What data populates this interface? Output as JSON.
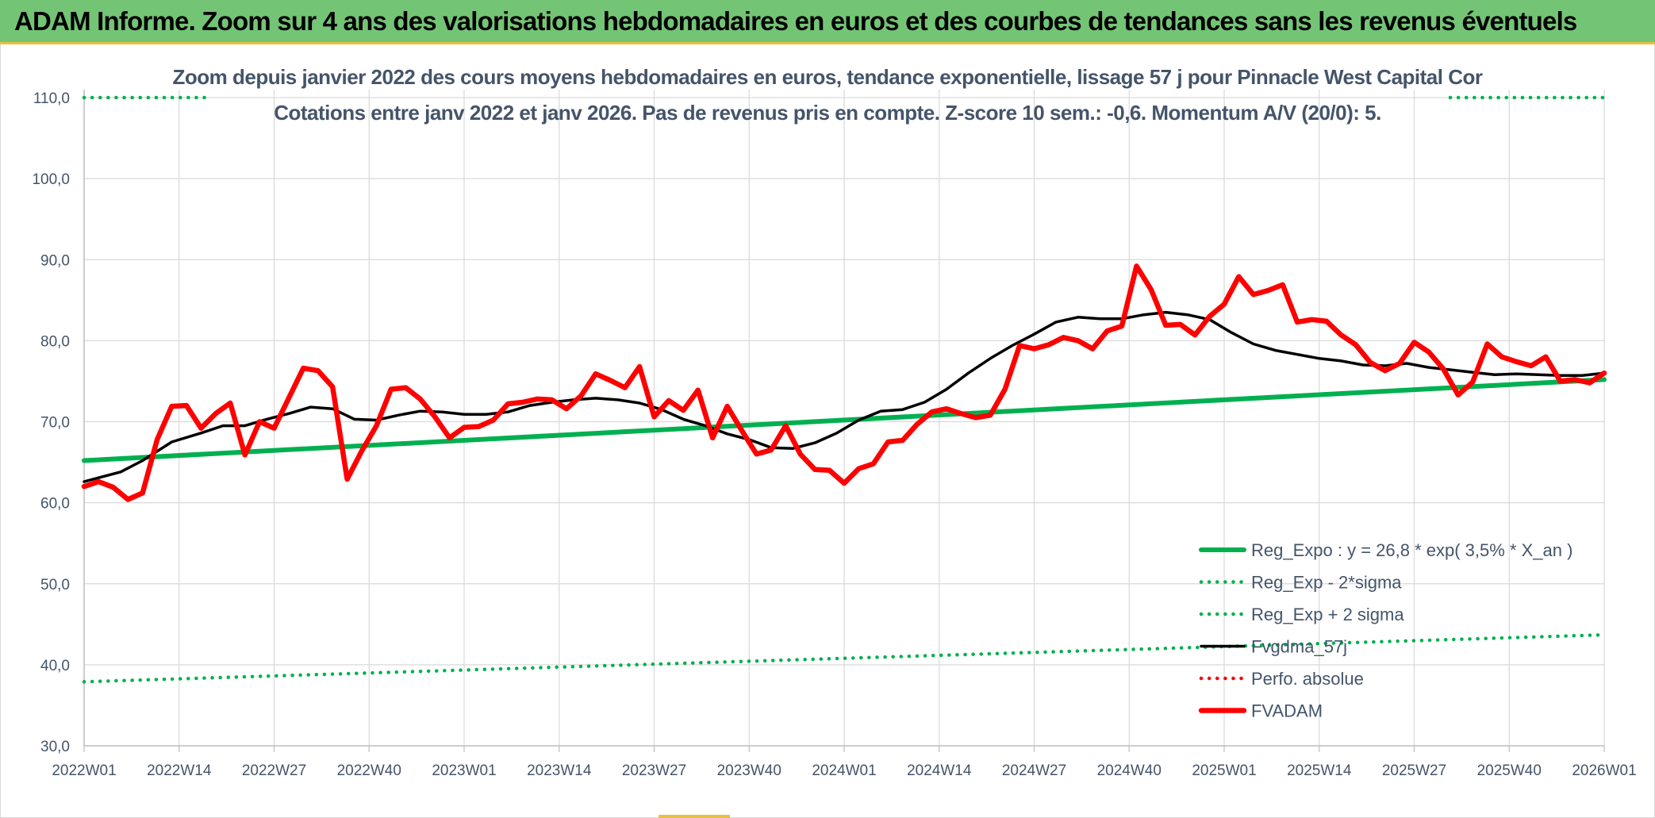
{
  "banner": {
    "title": "ADAM Informe. Zoom sur 4 ans des valorisations hebdomadaires en euros et des courbes de tendances sans les revenus éventuels"
  },
  "colors": {
    "banner": "#74c476",
    "accent": "#e8c042",
    "reg_expo": "#00b050",
    "fvgdma": "#000000",
    "fvadam": "#ff0000",
    "perfo": "#ff0000",
    "text": "#44546a",
    "grid": "#d9d9d9"
  },
  "chart_data": {
    "type": "line",
    "title_line1": "Zoom depuis janvier 2022 des cours moyens hebdomadaires en euros, tendance exponentielle, lissage 57 j pour Pinnacle West Capital Cor",
    "title_line2": "Cotations entre janv 2022 et janv 2026. Pas de revenus pris en compte. Z-score 10 sem.: -0,6. Momentum A/V (20/0): 5.",
    "x_tick_labels": [
      "2022W01",
      "2022W14",
      "2022W27",
      "2022W40",
      "2023W01",
      "2023W14",
      "2023W27",
      "2023W40",
      "2024W01",
      "2024W14",
      "2024W27",
      "2024W40",
      "2025W01",
      "2025W14",
      "2025W27",
      "2025W40",
      "2026W01"
    ],
    "x_range_weeks": [
      0,
      208
    ],
    "ylim": [
      30,
      110
    ],
    "y_ticks": [
      30,
      40,
      50,
      60,
      70,
      80,
      90,
      100,
      110
    ],
    "y_tick_labels": [
      "30,0",
      "40,0",
      "50,0",
      "60,0",
      "70,0",
      "80,0",
      "90,0",
      "100,0",
      "110,0"
    ],
    "grid": true,
    "legend_position": "bottom-right",
    "series": [
      {
        "name": "Reg_Expo : y = 26,8 * exp( 3,5% *  X_an )",
        "style": "solid-thick",
        "color": "#00b050",
        "x": [
          0,
          208
        ],
        "values": [
          65.2,
          75.2
        ]
      },
      {
        "name": "Reg_Exp - 2*sigma",
        "style": "dotted",
        "color": "#00b050",
        "x": [
          0,
          208
        ],
        "values": [
          37.9,
          43.7
        ]
      },
      {
        "name": "Reg_Exp + 2 sigma",
        "style": "dotted",
        "color": "#00b050",
        "x": [
          0,
          208
        ],
        "values": [
          110.0,
          110.0
        ]
      },
      {
        "name": "Fvgdma_57j",
        "style": "solid",
        "color": "#000000",
        "x": [
          0,
          5,
          8,
          12,
          16,
          19,
          22,
          25,
          28,
          31,
          34,
          37,
          40,
          43,
          46,
          49,
          52,
          55,
          58,
          61,
          64,
          67,
          70,
          73,
          76,
          79,
          82,
          85,
          88,
          91,
          94,
          97,
          100,
          103,
          106,
          109,
          112,
          115,
          118,
          121,
          124,
          127,
          130,
          133,
          136,
          139,
          142,
          145,
          148,
          151,
          154,
          157,
          160,
          163,
          166,
          169,
          172,
          175,
          178,
          181,
          184,
          187,
          190,
          193,
          196,
          199,
          202,
          205,
          208
        ],
        "values": [
          62.6,
          63.8,
          65.2,
          67.5,
          68.6,
          69.5,
          69.5,
          70.3,
          71.0,
          71.8,
          71.6,
          70.3,
          70.2,
          70.8,
          71.3,
          71.2,
          70.9,
          70.9,
          71.2,
          72.0,
          72.4,
          72.7,
          72.9,
          72.7,
          72.3,
          71.5,
          70.3,
          69.5,
          68.5,
          67.8,
          66.8,
          66.7,
          67.4,
          68.6,
          70.2,
          71.3,
          71.5,
          72.4,
          74.0,
          76.0,
          77.8,
          79.4,
          80.8,
          82.3,
          82.9,
          82.7,
          82.7,
          83.2,
          83.5,
          83.2,
          82.6,
          81.0,
          79.6,
          78.8,
          78.3,
          77.8,
          77.5,
          77.0,
          76.9,
          77.2,
          76.7,
          76.4,
          76.1,
          75.8,
          75.9,
          75.8,
          75.7,
          75.7,
          76.0
        ]
      },
      {
        "name": "Perfo. absolue",
        "style": "dotted",
        "color": "#ff0000",
        "x": [],
        "values": []
      },
      {
        "name": "FVADAM",
        "style": "solid-thick",
        "color": "#ff0000",
        "x": [
          0,
          2,
          4,
          6,
          8,
          10,
          12,
          14,
          16,
          18,
          20,
          22,
          24,
          26,
          28,
          30,
          32,
          34,
          36,
          38,
          40,
          42,
          44,
          46,
          48,
          50,
          52,
          54,
          56,
          58,
          60,
          62,
          64,
          66,
          68,
          70,
          72,
          74,
          76,
          78,
          80,
          82,
          84,
          86,
          88,
          90,
          92,
          94,
          96,
          98,
          100,
          102,
          104,
          106,
          108,
          110,
          112,
          114,
          116,
          118,
          120,
          122,
          124,
          126,
          128,
          130,
          132,
          134,
          136,
          138,
          140,
          142,
          144,
          146,
          148,
          150,
          152,
          154,
          156,
          158,
          160,
          162,
          164,
          166,
          168,
          170,
          172,
          174,
          176,
          178,
          180,
          182,
          184,
          186,
          188,
          190,
          192,
          194,
          196,
          198,
          200,
          202,
          204,
          206,
          208
        ],
        "values": [
          62.0,
          62.6,
          61.9,
          60.4,
          61.2,
          67.8,
          71.9,
          72.0,
          69.2,
          71.0,
          72.3,
          65.9,
          70.0,
          69.2,
          72.9,
          76.6,
          76.3,
          74.3,
          62.9,
          66.4,
          69.5,
          74.0,
          74.2,
          72.8,
          70.6,
          68.0,
          69.3,
          69.4,
          70.2,
          72.2,
          72.4,
          72.8,
          72.7,
          71.6,
          73.2,
          75.9,
          75.1,
          74.2,
          76.8,
          70.6,
          72.6,
          71.4,
          73.9,
          68.0,
          71.9,
          68.9,
          66.0,
          66.5,
          69.5,
          66.0,
          64.1,
          64.0,
          62.4,
          64.2,
          64.8,
          67.5,
          67.7,
          69.7,
          71.2,
          71.6,
          71.0,
          70.5,
          70.8,
          74.0,
          79.4,
          79.0,
          79.5,
          80.4,
          80.0,
          79.0,
          81.2,
          81.8,
          89.2,
          86.3,
          81.9,
          82.0,
          80.7,
          83.0,
          84.5,
          87.9,
          85.7,
          86.2,
          86.9,
          82.3,
          82.6,
          82.4,
          80.7,
          79.5,
          77.3,
          76.3,
          77.2,
          79.8,
          78.6,
          76.5,
          73.3,
          74.9,
          79.6,
          78.0,
          77.4,
          76.9,
          78.0,
          75.0,
          75.2,
          74.8,
          76.0
        ]
      }
    ]
  },
  "legend": [
    {
      "label": "Reg_Expo : y = 26,8 * exp( 3,5% *  X_an )",
      "style": "solid-thick",
      "color": "#00b050"
    },
    {
      "label": "Reg_Exp - 2*sigma",
      "style": "dotted",
      "color": "#00b050"
    },
    {
      "label": "Reg_Exp + 2 sigma",
      "style": "dotted",
      "color": "#00b050"
    },
    {
      "label": "Fvgdma_57j",
      "style": "solid",
      "color": "#000000"
    },
    {
      "label": "Perfo. absolue",
      "style": "dotted",
      "color": "#ff0000"
    },
    {
      "label": "FVADAM",
      "style": "solid-thick",
      "color": "#ff0000"
    }
  ]
}
